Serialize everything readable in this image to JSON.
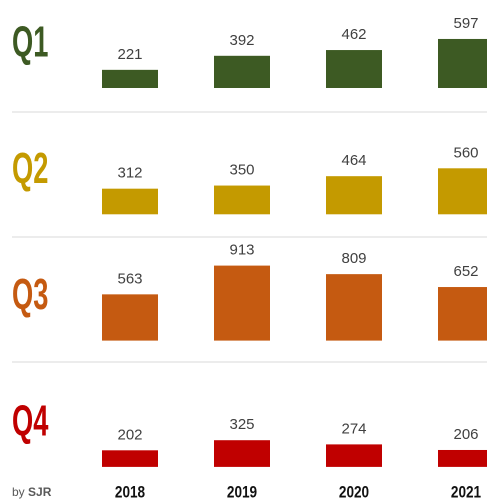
{
  "chart_data": {
    "type": "bar",
    "categories": [
      "2018",
      "2019",
      "2020",
      "2021"
    ],
    "series": [
      {
        "name": "Q1",
        "color": "#3d5a23",
        "values": [
          221,
          392,
          462,
          597
        ]
      },
      {
        "name": "Q2",
        "color": "#c49a00",
        "values": [
          312,
          350,
          464,
          560
        ]
      },
      {
        "name": "Q3",
        "color": "#c55a11",
        "values": [
          563,
          913,
          809,
          652
        ]
      },
      {
        "name": "Q4",
        "color": "#c00000",
        "values": [
          202,
          325,
          274,
          206
        ]
      }
    ],
    "byline": {
      "prefix": "by",
      "author": "SJR"
    }
  }
}
